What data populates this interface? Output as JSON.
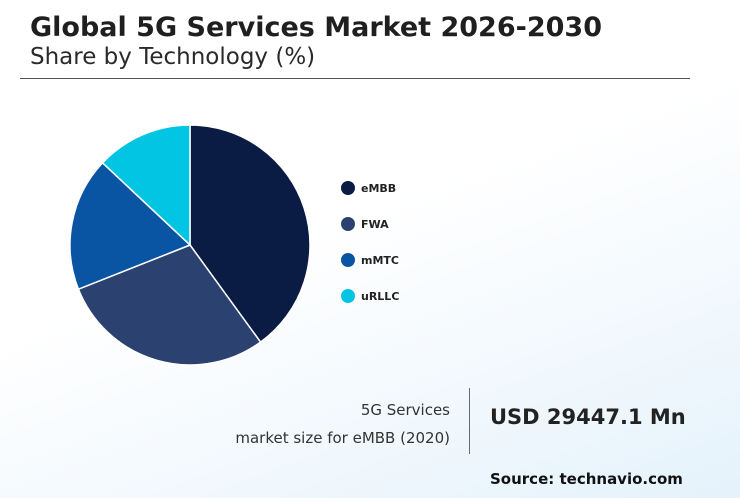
{
  "header": {
    "title": "Global 5G Services Market 2026-2030",
    "subtitle": "Share by Technology (%)"
  },
  "chart_data": {
    "type": "pie",
    "categories": [
      "eMBB",
      "FWA",
      "mMTC",
      "uRLLC"
    ],
    "values": [
      40,
      29,
      18,
      13
    ],
    "colors": [
      "#0a1c43",
      "#2b4170",
      "#0a55a3",
      "#02c5e3"
    ],
    "legend_position": "right"
  },
  "stat": {
    "line1": "5G Services",
    "line2": "market size for eMBB (2020)",
    "value": "USD 29447.1 Mn"
  },
  "source": "Source: technavio.com"
}
